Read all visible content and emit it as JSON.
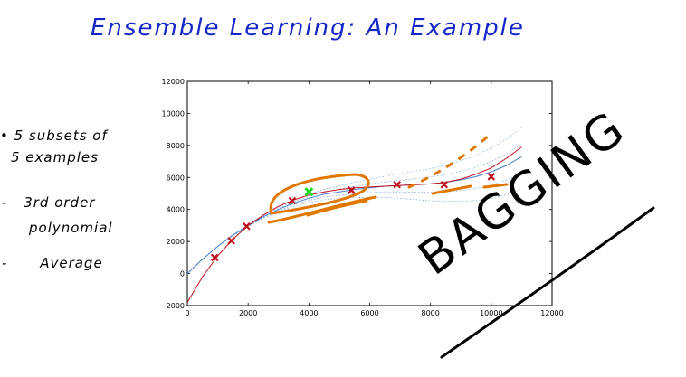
{
  "title": "Ensemble Learning: An Example",
  "notes": [
    {
      "bullet": "•",
      "lines": [
        "5 subsets of",
        "5 examples"
      ]
    },
    {
      "bullet": "-",
      "lines": [
        "3rd order",
        "polynomial"
      ]
    },
    {
      "bullet": "-",
      "lines": [
        "Average"
      ]
    }
  ],
  "annotation": "BAGGING",
  "colors": {
    "title": "#1526c8",
    "markers": "#c0101c",
    "highlight": "#e07800",
    "green": "#22dd22",
    "fit_red": "#c0101c",
    "fit_blue": "#4a7fcf"
  },
  "chart_data": {
    "type": "scatter",
    "xlim": [
      0,
      12000
    ],
    "ylim": [
      -2000,
      12000
    ],
    "x_ticks": [
      0,
      2000,
      4000,
      6000,
      8000,
      10000,
      12000
    ],
    "y_ticks": [
      -2000,
      0,
      2000,
      4000,
      6000,
      8000,
      10000,
      12000
    ],
    "points": [
      {
        "x": 900,
        "y": 1000
      },
      {
        "x": 1450,
        "y": 2050
      },
      {
        "x": 1950,
        "y": 2950
      },
      {
        "x": 3450,
        "y": 4550
      },
      {
        "x": 5400,
        "y": 5200
      },
      {
        "x": 6900,
        "y": 5550
      },
      {
        "x": 8450,
        "y": 5550
      },
      {
        "x": 10000,
        "y": 6050
      }
    ],
    "highlight_point": {
      "x": 4000,
      "y": 5100
    },
    "fit_red": [
      [
        0,
        -1800
      ],
      [
        500,
        -200
      ],
      [
        1000,
        1100
      ],
      [
        1500,
        2150
      ],
      [
        2000,
        3000
      ],
      [
        2500,
        3650
      ],
      [
        3000,
        4200
      ],
      [
        3500,
        4600
      ],
      [
        4000,
        4900
      ],
      [
        4500,
        5100
      ],
      [
        5000,
        5250
      ],
      [
        5500,
        5350
      ],
      [
        6000,
        5400
      ],
      [
        6500,
        5450
      ],
      [
        7000,
        5500
      ],
      [
        7500,
        5550
      ],
      [
        8000,
        5600
      ],
      [
        8500,
        5700
      ],
      [
        9000,
        5900
      ],
      [
        9500,
        6200
      ],
      [
        10000,
        6600
      ],
      [
        10500,
        7200
      ],
      [
        11000,
        7900
      ]
    ],
    "fit_blue": [
      [
        0,
        0
      ],
      [
        500,
        900
      ],
      [
        1000,
        1700
      ],
      [
        1500,
        2400
      ],
      [
        2000,
        3000
      ],
      [
        2500,
        3550
      ],
      [
        3000,
        4000
      ],
      [
        3500,
        4400
      ],
      [
        4000,
        4700
      ],
      [
        4500,
        4950
      ],
      [
        5000,
        5100
      ],
      [
        5500,
        5250
      ],
      [
        6000,
        5350
      ],
      [
        6500,
        5450
      ],
      [
        7000,
        5500
      ],
      [
        7500,
        5550
      ],
      [
        8000,
        5600
      ],
      [
        8500,
        5700
      ],
      [
        9000,
        5850
      ],
      [
        9500,
        6050
      ],
      [
        10000,
        6350
      ],
      [
        10500,
        6750
      ],
      [
        11000,
        7300
      ]
    ]
  }
}
